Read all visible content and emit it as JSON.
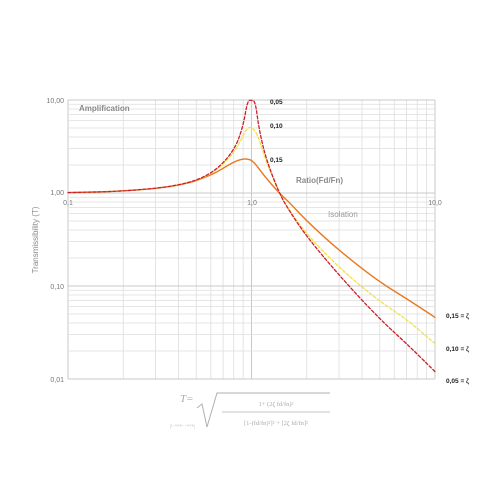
{
  "chart_data": {
    "type": "line",
    "xscale": "log",
    "yscale": "log",
    "xlim": [
      0.1,
      10
    ],
    "ylim": [
      0.01,
      10
    ],
    "grid": true,
    "ylabel": "Transmissibility (T)",
    "x_tick_labels": [
      "0,1",
      "1,0",
      "10,0"
    ],
    "y_tick_labels": [
      "10,00",
      "1,00",
      "0,10",
      "0,01"
    ],
    "annotations": {
      "amplification": "Amplification",
      "ratio": "Ratio(Fd/Fn)",
      "isolation": "Isolation"
    },
    "series": [
      {
        "label_peak": "0,05",
        "label_end": "0,05 = ζ",
        "color": "#cc1f2a",
        "style": "dashed",
        "x": [
          0.1,
          0.2,
          0.4,
          0.6,
          0.8,
          0.9,
          0.95,
          1.0,
          1.05,
          1.1,
          1.2,
          1.414,
          1.6,
          2.0,
          3.0,
          5.0,
          7.0,
          10.0
        ],
        "y": [
          1.01,
          1.042,
          1.19,
          1.56,
          2.77,
          5.19,
          9.8,
          10.0,
          9.6,
          4.8,
          2.32,
          1.0,
          0.65,
          0.34,
          0.13,
          0.044,
          0.024,
          0.012
        ]
      },
      {
        "label_peak": "0,10",
        "label_end": "0,10 = ζ",
        "color": "#f2e24a",
        "style": "dashed",
        "x": [
          0.1,
          0.2,
          0.4,
          0.6,
          0.8,
          0.9,
          0.95,
          1.0,
          1.05,
          1.1,
          1.2,
          1.414,
          1.6,
          2.0,
          3.0,
          5.0,
          7.0,
          10.0
        ],
        "y": [
          1.01,
          1.042,
          1.19,
          1.55,
          2.64,
          4.15,
          5.03,
          5.1,
          4.62,
          3.78,
          2.2,
          1.0,
          0.66,
          0.36,
          0.157,
          0.068,
          0.044,
          0.024
        ]
      },
      {
        "label_peak": "0,15",
        "label_end": "0,15 = ζ",
        "color": "#e8781f",
        "style": "solid",
        "x": [
          0.1,
          0.2,
          0.4,
          0.6,
          0.8,
          0.9,
          0.95,
          1.0,
          1.05,
          1.1,
          1.2,
          1.414,
          1.6,
          2.0,
          3.0,
          5.0,
          7.0,
          10.0
        ],
        "y": [
          1.01,
          1.042,
          1.18,
          1.53,
          2.17,
          2.33,
          2.32,
          2.25,
          2.05,
          1.82,
          1.45,
          1.0,
          0.8,
          0.5,
          0.24,
          0.11,
          0.073,
          0.046
        ]
      }
    ]
  },
  "formula": {
    "lhs": "T=",
    "prefix": "|¹⁻ᵂᵀᴿ⁻⁻ᵂᵀᴿ|",
    "numerator": "1+ (2ζ fd/fn)²",
    "denominator": "[1-(fd/fn)²]² + [2ζ fd/fn]²"
  }
}
